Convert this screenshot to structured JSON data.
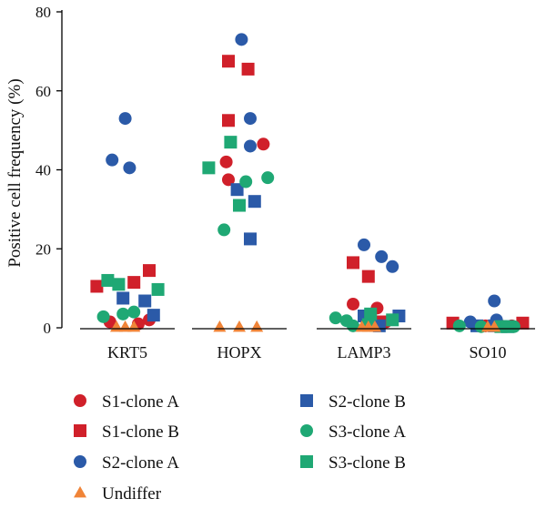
{
  "chart_data": {
    "type": "scatter",
    "title": "",
    "xlabel": "",
    "ylabel": "Positive cell frequency (%)",
    "ylim": [
      0,
      80
    ],
    "yticks": [
      0,
      20,
      40,
      60,
      80
    ],
    "categories": [
      "KRT5",
      "HOPX",
      "LAMP3",
      "SO10"
    ],
    "grid": false,
    "legend_position": "bottom",
    "series": [
      {
        "name": "S1-clone A",
        "marker": "circle",
        "color": "#d0202a",
        "points": [
          {
            "category": "KRT5",
            "offset": -0.4,
            "y": 1.5
          },
          {
            "category": "KRT5",
            "offset": 0.25,
            "y": 1.0
          },
          {
            "category": "KRT5",
            "offset": 0.5,
            "y": 2.0
          },
          {
            "category": "HOPX",
            "offset": -0.3,
            "y": 42
          },
          {
            "category": "HOPX",
            "offset": -0.25,
            "y": 37.5
          },
          {
            "category": "HOPX",
            "offset": 0.55,
            "y": 46.5
          },
          {
            "category": "LAMP3",
            "offset": -0.25,
            "y": 6
          },
          {
            "category": "LAMP3",
            "offset": 0.3,
            "y": 5
          },
          {
            "category": "LAMP3",
            "offset": 0.5,
            "y": 1.5
          },
          {
            "category": "SO10",
            "offset": -0.05,
            "y": 0.5
          },
          {
            "category": "SO10",
            "offset": 0.3,
            "y": 0.5
          },
          {
            "category": "SO10",
            "offset": 0.55,
            "y": 0.5
          }
        ]
      },
      {
        "name": "S1-clone B",
        "marker": "square",
        "color": "#d0202a",
        "points": [
          {
            "category": "KRT5",
            "offset": -0.7,
            "y": 10.5
          },
          {
            "category": "KRT5",
            "offset": 0.15,
            "y": 11.5
          },
          {
            "category": "KRT5",
            "offset": 0.5,
            "y": 14.5
          },
          {
            "category": "HOPX",
            "offset": -0.25,
            "y": 67.5
          },
          {
            "category": "HOPX",
            "offset": -0.25,
            "y": 52.5
          },
          {
            "category": "HOPX",
            "offset": 0.2,
            "y": 65.5
          },
          {
            "category": "LAMP3",
            "offset": -0.25,
            "y": 16.5
          },
          {
            "category": "LAMP3",
            "offset": 0.1,
            "y": 13
          },
          {
            "category": "LAMP3",
            "offset": 0.35,
            "y": 1.5
          },
          {
            "category": "SO10",
            "offset": -0.8,
            "y": 1.2
          },
          {
            "category": "SO10",
            "offset": 0.8,
            "y": 1.2
          }
        ]
      },
      {
        "name": "S2-clone A",
        "marker": "circle",
        "color": "#2b5aa8",
        "points": [
          {
            "category": "KRT5",
            "offset": -0.05,
            "y": 53
          },
          {
            "category": "KRT5",
            "offset": -0.35,
            "y": 42.5
          },
          {
            "category": "KRT5",
            "offset": 0.05,
            "y": 40.5
          },
          {
            "category": "HOPX",
            "offset": 0.05,
            "y": 73
          },
          {
            "category": "HOPX",
            "offset": 0.25,
            "y": 53
          },
          {
            "category": "HOPX",
            "offset": 0.25,
            "y": 46
          },
          {
            "category": "LAMP3",
            "offset": 0.0,
            "y": 21
          },
          {
            "category": "LAMP3",
            "offset": 0.4,
            "y": 18
          },
          {
            "category": "LAMP3",
            "offset": 0.65,
            "y": 15.5
          },
          {
            "category": "SO10",
            "offset": 0.15,
            "y": 6.8
          },
          {
            "category": "SO10",
            "offset": -0.4,
            "y": 1.5
          },
          {
            "category": "SO10",
            "offset": 0.2,
            "y": 2.0
          }
        ]
      },
      {
        "name": "S2-clone B",
        "marker": "square",
        "color": "#2b5aa8",
        "points": [
          {
            "category": "KRT5",
            "offset": -0.1,
            "y": 7.5
          },
          {
            "category": "KRT5",
            "offset": 0.4,
            "y": 6.8
          },
          {
            "category": "KRT5",
            "offset": 0.6,
            "y": 3.2
          },
          {
            "category": "HOPX",
            "offset": -0.05,
            "y": 35
          },
          {
            "category": "HOPX",
            "offset": 0.35,
            "y": 32
          },
          {
            "category": "HOPX",
            "offset": 0.25,
            "y": 22.5
          },
          {
            "category": "LAMP3",
            "offset": 0.0,
            "y": 3.0
          },
          {
            "category": "LAMP3",
            "offset": 0.35,
            "y": 0.5
          },
          {
            "category": "LAMP3",
            "offset": 0.8,
            "y": 3.0
          },
          {
            "category": "SO10",
            "offset": -0.25,
            "y": 0.5
          },
          {
            "category": "SO10",
            "offset": 0.15,
            "y": 0.5
          },
          {
            "category": "SO10",
            "offset": 0.45,
            "y": 0.3
          }
        ]
      },
      {
        "name": "S3-clone A",
        "marker": "circle",
        "color": "#1fa874",
        "points": [
          {
            "category": "KRT5",
            "offset": -0.55,
            "y": 2.8
          },
          {
            "category": "KRT5",
            "offset": -0.1,
            "y": 3.5
          },
          {
            "category": "KRT5",
            "offset": 0.15,
            "y": 4.0
          },
          {
            "category": "HOPX",
            "offset": -0.35,
            "y": 24.8
          },
          {
            "category": "HOPX",
            "offset": 0.15,
            "y": 37
          },
          {
            "category": "HOPX",
            "offset": 0.65,
            "y": 38
          },
          {
            "category": "LAMP3",
            "offset": -0.65,
            "y": 2.5
          },
          {
            "category": "LAMP3",
            "offset": -0.4,
            "y": 1.8
          },
          {
            "category": "LAMP3",
            "offset": -0.25,
            "y": 0.5
          },
          {
            "category": "SO10",
            "offset": -0.65,
            "y": 0.5
          },
          {
            "category": "SO10",
            "offset": -0.15,
            "y": 0.3
          },
          {
            "category": "SO10",
            "offset": 0.6,
            "y": 0.3
          }
        ]
      },
      {
        "name": "S3-clone B",
        "marker": "square",
        "color": "#1fa874",
        "points": [
          {
            "category": "KRT5",
            "offset": -0.45,
            "y": 12
          },
          {
            "category": "KRT5",
            "offset": -0.2,
            "y": 11
          },
          {
            "category": "KRT5",
            "offset": 0.7,
            "y": 9.7
          },
          {
            "category": "HOPX",
            "offset": -0.7,
            "y": 40.5
          },
          {
            "category": "HOPX",
            "offset": -0.2,
            "y": 47
          },
          {
            "category": "HOPX",
            "offset": 0.0,
            "y": 31
          },
          {
            "category": "LAMP3",
            "offset": 0.15,
            "y": 3.5
          },
          {
            "category": "LAMP3",
            "offset": 0.1,
            "y": 0.8
          },
          {
            "category": "LAMP3",
            "offset": 0.65,
            "y": 2.0
          },
          {
            "category": "SO10",
            "offset": 0.3,
            "y": 0.3
          },
          {
            "category": "SO10",
            "offset": 0.45,
            "y": 0.3
          }
        ]
      },
      {
        "name": "Undiffer",
        "marker": "triangle",
        "color": "#f08438",
        "points": [
          {
            "category": "KRT5",
            "offset": -0.25,
            "y": 0
          },
          {
            "category": "KRT5",
            "offset": -0.05,
            "y": 0
          },
          {
            "category": "KRT5",
            "offset": 0.15,
            "y": 0
          },
          {
            "category": "HOPX",
            "offset": -0.45,
            "y": 0
          },
          {
            "category": "HOPX",
            "offset": 0.0,
            "y": 0
          },
          {
            "category": "HOPX",
            "offset": 0.4,
            "y": 0
          },
          {
            "category": "LAMP3",
            "offset": -0.05,
            "y": 0
          },
          {
            "category": "LAMP3",
            "offset": 0.1,
            "y": 0
          },
          {
            "category": "LAMP3",
            "offset": 0.25,
            "y": 0
          },
          {
            "category": "SO10",
            "offset": 0.0,
            "y": 0
          },
          {
            "category": "SO10",
            "offset": 0.15,
            "y": 0
          }
        ]
      }
    ]
  }
}
